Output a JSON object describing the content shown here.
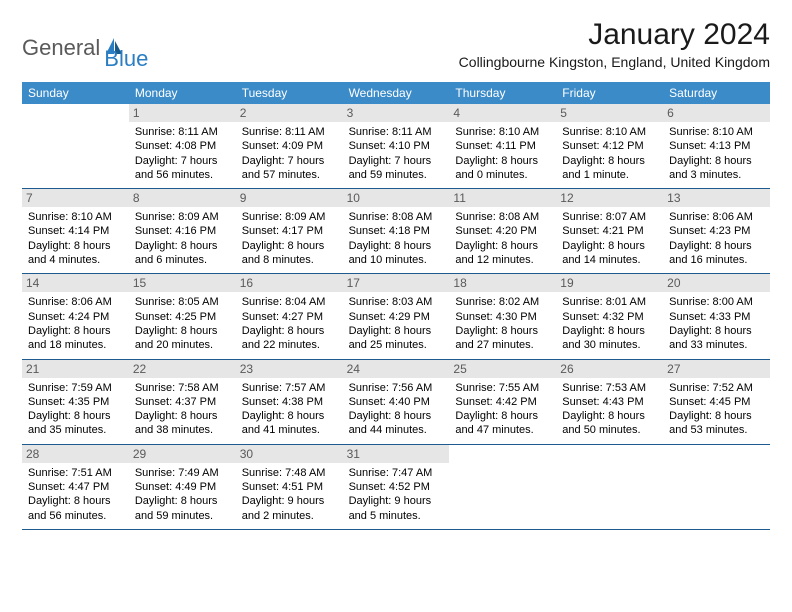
{
  "logo": {
    "general": "General",
    "blue": "Blue"
  },
  "title": "January 2024",
  "location": "Collingbourne Kingston, England, United Kingdom",
  "day_names": [
    "Sunday",
    "Monday",
    "Tuesday",
    "Wednesday",
    "Thursday",
    "Friday",
    "Saturday"
  ],
  "style": {
    "header_bg": "#3b8bc9",
    "header_text": "#ffffff",
    "daynum_bg": "#e6e6e6",
    "daynum_color": "#5a5a5a",
    "row_border": "#1e5a8e",
    "body_text": "#000000",
    "logo_gray": "#5a5a5a",
    "logo_blue": "#2b7ec2",
    "title_fontsize": 30,
    "location_fontsize": 14,
    "dayheader_fontsize": 12,
    "daynum_fontsize": 12,
    "info_fontsize": 11
  },
  "first_weekday_offset": 1,
  "days": [
    {
      "n": 1,
      "sunrise": "8:11 AM",
      "sunset": "4:08 PM",
      "daylight": "7 hours and 56 minutes."
    },
    {
      "n": 2,
      "sunrise": "8:11 AM",
      "sunset": "4:09 PM",
      "daylight": "7 hours and 57 minutes."
    },
    {
      "n": 3,
      "sunrise": "8:11 AM",
      "sunset": "4:10 PM",
      "daylight": "7 hours and 59 minutes."
    },
    {
      "n": 4,
      "sunrise": "8:10 AM",
      "sunset": "4:11 PM",
      "daylight": "8 hours and 0 minutes."
    },
    {
      "n": 5,
      "sunrise": "8:10 AM",
      "sunset": "4:12 PM",
      "daylight": "8 hours and 1 minute."
    },
    {
      "n": 6,
      "sunrise": "8:10 AM",
      "sunset": "4:13 PM",
      "daylight": "8 hours and 3 minutes."
    },
    {
      "n": 7,
      "sunrise": "8:10 AM",
      "sunset": "4:14 PM",
      "daylight": "8 hours and 4 minutes."
    },
    {
      "n": 8,
      "sunrise": "8:09 AM",
      "sunset": "4:16 PM",
      "daylight": "8 hours and 6 minutes."
    },
    {
      "n": 9,
      "sunrise": "8:09 AM",
      "sunset": "4:17 PM",
      "daylight": "8 hours and 8 minutes."
    },
    {
      "n": 10,
      "sunrise": "8:08 AM",
      "sunset": "4:18 PM",
      "daylight": "8 hours and 10 minutes."
    },
    {
      "n": 11,
      "sunrise": "8:08 AM",
      "sunset": "4:20 PM",
      "daylight": "8 hours and 12 minutes."
    },
    {
      "n": 12,
      "sunrise": "8:07 AM",
      "sunset": "4:21 PM",
      "daylight": "8 hours and 14 minutes."
    },
    {
      "n": 13,
      "sunrise": "8:06 AM",
      "sunset": "4:23 PM",
      "daylight": "8 hours and 16 minutes."
    },
    {
      "n": 14,
      "sunrise": "8:06 AM",
      "sunset": "4:24 PM",
      "daylight": "8 hours and 18 minutes."
    },
    {
      "n": 15,
      "sunrise": "8:05 AM",
      "sunset": "4:25 PM",
      "daylight": "8 hours and 20 minutes."
    },
    {
      "n": 16,
      "sunrise": "8:04 AM",
      "sunset": "4:27 PM",
      "daylight": "8 hours and 22 minutes."
    },
    {
      "n": 17,
      "sunrise": "8:03 AM",
      "sunset": "4:29 PM",
      "daylight": "8 hours and 25 minutes."
    },
    {
      "n": 18,
      "sunrise": "8:02 AM",
      "sunset": "4:30 PM",
      "daylight": "8 hours and 27 minutes."
    },
    {
      "n": 19,
      "sunrise": "8:01 AM",
      "sunset": "4:32 PM",
      "daylight": "8 hours and 30 minutes."
    },
    {
      "n": 20,
      "sunrise": "8:00 AM",
      "sunset": "4:33 PM",
      "daylight": "8 hours and 33 minutes."
    },
    {
      "n": 21,
      "sunrise": "7:59 AM",
      "sunset": "4:35 PM",
      "daylight": "8 hours and 35 minutes."
    },
    {
      "n": 22,
      "sunrise": "7:58 AM",
      "sunset": "4:37 PM",
      "daylight": "8 hours and 38 minutes."
    },
    {
      "n": 23,
      "sunrise": "7:57 AM",
      "sunset": "4:38 PM",
      "daylight": "8 hours and 41 minutes."
    },
    {
      "n": 24,
      "sunrise": "7:56 AM",
      "sunset": "4:40 PM",
      "daylight": "8 hours and 44 minutes."
    },
    {
      "n": 25,
      "sunrise": "7:55 AM",
      "sunset": "4:42 PM",
      "daylight": "8 hours and 47 minutes."
    },
    {
      "n": 26,
      "sunrise": "7:53 AM",
      "sunset": "4:43 PM",
      "daylight": "8 hours and 50 minutes."
    },
    {
      "n": 27,
      "sunrise": "7:52 AM",
      "sunset": "4:45 PM",
      "daylight": "8 hours and 53 minutes."
    },
    {
      "n": 28,
      "sunrise": "7:51 AM",
      "sunset": "4:47 PM",
      "daylight": "8 hours and 56 minutes."
    },
    {
      "n": 29,
      "sunrise": "7:49 AM",
      "sunset": "4:49 PM",
      "daylight": "8 hours and 59 minutes."
    },
    {
      "n": 30,
      "sunrise": "7:48 AM",
      "sunset": "4:51 PM",
      "daylight": "9 hours and 2 minutes."
    },
    {
      "n": 31,
      "sunrise": "7:47 AM",
      "sunset": "4:52 PM",
      "daylight": "9 hours and 5 minutes."
    }
  ],
  "labels": {
    "sunrise_prefix": "Sunrise: ",
    "sunset_prefix": "Sunset: ",
    "daylight_prefix": "Daylight: "
  }
}
